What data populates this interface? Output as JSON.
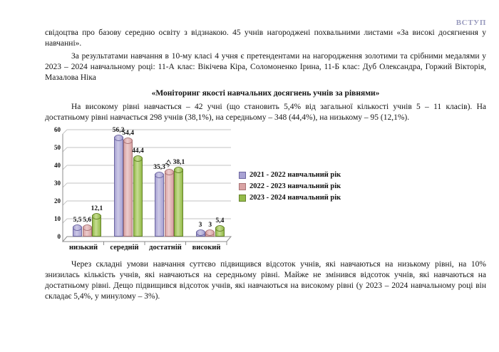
{
  "header": {
    "label": "ВСТУП",
    "color": "#9a9cbf"
  },
  "paragraphs": {
    "p1": "свідоцтва про базову середню освіту з відзнакою. 45 учнів нагороджені похвальними листами «За високі досягнення у навчанні».",
    "p2": "За результатами навчання в 10-му класі 4 учня є претендентами на нагородження золотими та срібними медалями у 2023 – 2024 навчальному році: 11-А клас: Вікічева Кіра, Соломоненко Ірина, 11-Б клас: Дуб Олександра, Горжий Вікторія, Мазалова Ніка",
    "heading": "«Моніторинг якості навчальних досягнень учнів за рівнями»",
    "p3": "На високому рівні навчається – 42 учні (що становить 5,4% від загальної кількості учнів 5 – 11 класів). На достатньому рівні навчається 298 учнів (38,1%), на середньому – 348 (44,4%), на низькому – 95 (12,1%).",
    "p4": "Через складні умови навчання суттєво підвищився відсоток учнів, які навчаються на низькому рівні, на 10% знизилась кількість учнів, які навчаються на середньому рівні. Майже не змінився відсоток учнів, які навчаються на достатньому рівні. Дещо підвищився відсоток учнів, які навчаються на високому рівні (у 2023 – 2024 навчальному році він складає 5,4%, у минулому – 3%)."
  },
  "chart_data": {
    "type": "bar",
    "title": "",
    "xlabel": "",
    "ylabel": "",
    "categories": [
      "низький",
      "середній",
      "достатній",
      "високий"
    ],
    "series": [
      {
        "name": "2021 - 2022 навчальний рік",
        "values": [
          5.5,
          56.2,
          35.3,
          3
        ],
        "color": "#a8a2d3",
        "highlight": "#cdc9e6",
        "border": "#6c66a0"
      },
      {
        "name": "2022 - 2023 навчальний рік",
        "values": [
          5.6,
          54.4,
          37,
          3
        ],
        "color": "#d9a3a4",
        "highlight": "#eccccd",
        "border": "#a97476"
      },
      {
        "name": "2023 - 2024 навчальний рік",
        "values": [
          12.1,
          44.4,
          38.1,
          5.4
        ],
        "color": "#94bb4a",
        "highlight": "#c6dc92",
        "border": "#65832a"
      }
    ],
    "ylim": [
      0,
      60
    ],
    "yticks": [
      0,
      10,
      20,
      30,
      40,
      50,
      60
    ],
    "grid": true,
    "legend_position": "right",
    "style": "3d-column",
    "gridline_color": "#c3c3c3",
    "axis_color": "#8c8c8c"
  }
}
